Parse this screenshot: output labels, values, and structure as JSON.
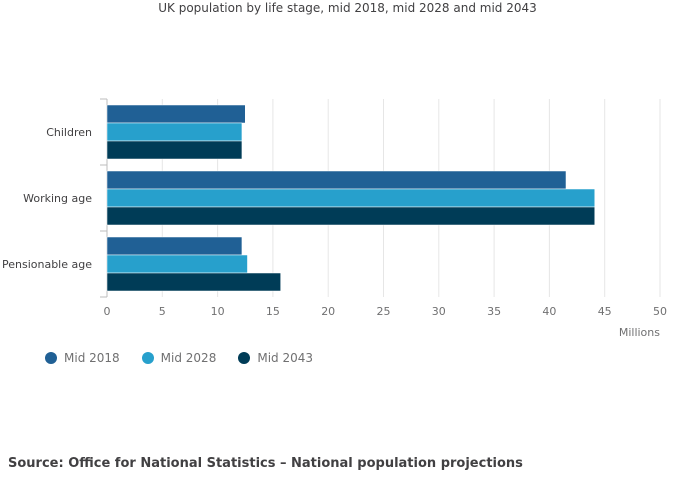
{
  "chart_data": {
    "type": "bar",
    "orientation": "horizontal",
    "title": "UK population by life stage, mid 2018, mid 2028 and mid 2043",
    "categories": [
      "Children",
      "Working age",
      "Pensionable age"
    ],
    "series": [
      {
        "name": "Mid 2018",
        "color": "#206095",
        "values": [
          12.5,
          41.5,
          12.2
        ]
      },
      {
        "name": "Mid 2028",
        "color": "#27a0cc",
        "values": [
          12.2,
          44.1,
          12.7
        ]
      },
      {
        "name": "Mid 2043",
        "color": "#003c57",
        "values": [
          12.2,
          44.1,
          15.7
        ]
      }
    ],
    "xlabel": "Millions",
    "xlim": [
      0,
      50
    ],
    "xticks": [
      "0",
      "5",
      "10",
      "15",
      "20",
      "25",
      "30",
      "35",
      "40",
      "45",
      "50"
    ],
    "grid": true,
    "legend": "bottom-left"
  },
  "source": "Source: Office for National Statistics – National population projections"
}
